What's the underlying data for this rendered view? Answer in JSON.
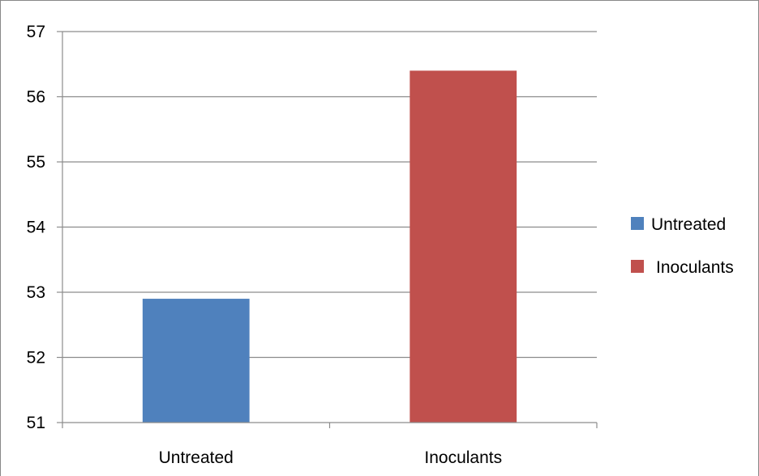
{
  "chart_data": {
    "type": "bar",
    "categories": [
      "Untreated",
      "Inoculants"
    ],
    "values": [
      52.9,
      56.4
    ],
    "colors": [
      "#4F81BD",
      "#C0504D"
    ],
    "ylim": [
      51,
      57
    ],
    "yticks": [
      51,
      52,
      53,
      54,
      55,
      56,
      57
    ],
    "grid": true,
    "legend": {
      "placement": "right",
      "entries": [
        "Untreated",
        "Inoculants"
      ]
    }
  }
}
